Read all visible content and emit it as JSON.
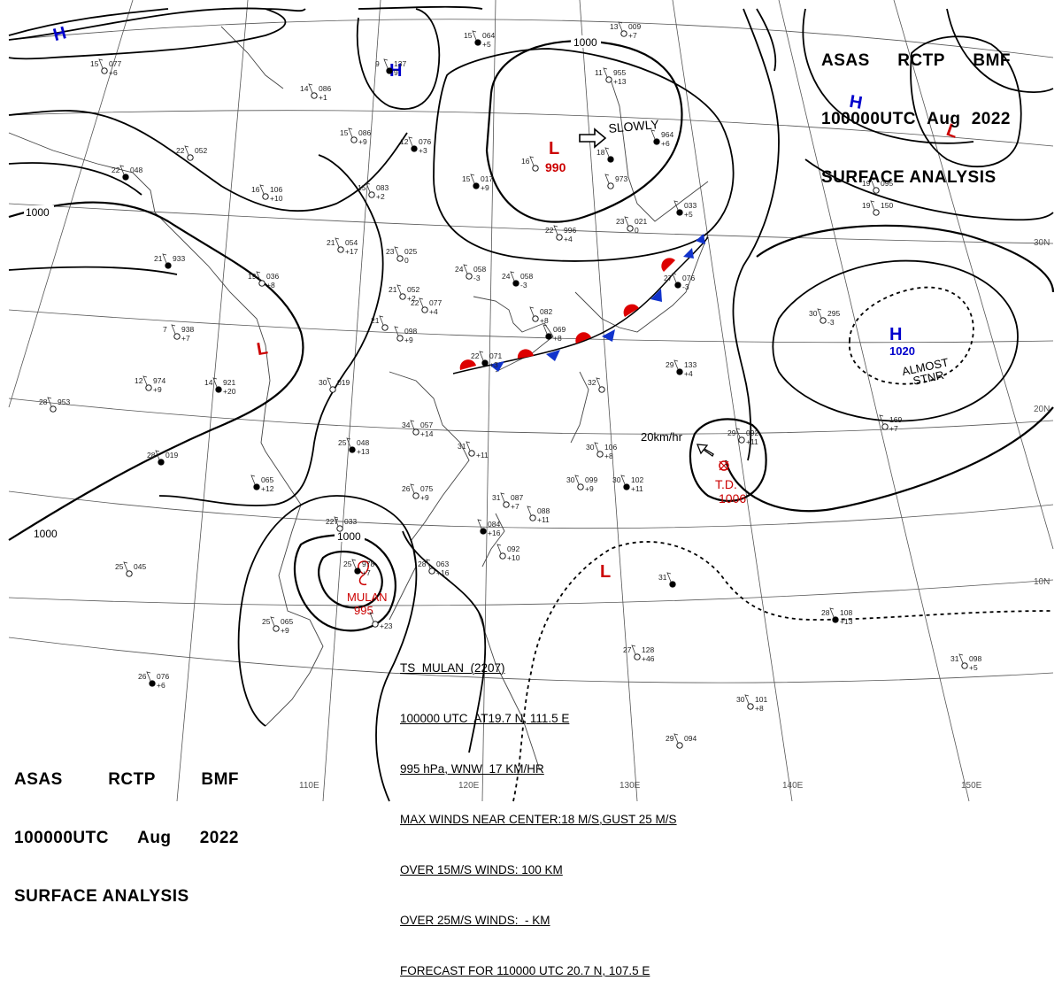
{
  "header": {
    "line1": [
      "ASAS",
      "RCTP",
      "BMF"
    ],
    "line2": [
      "100000UTC",
      "Aug",
      "2022"
    ],
    "line3": "SURFACE ANALYSIS"
  },
  "isobar_labels": [
    "1000",
    "1000",
    "1000",
    "1000"
  ],
  "pressure_systems": [
    {
      "symbol": "H",
      "color": "#0000cc"
    },
    {
      "symbol": "H",
      "color": "#0000cc"
    },
    {
      "symbol": "H",
      "color": "#0000cc"
    },
    {
      "symbol": "L",
      "color": "#cc0000",
      "value": "990",
      "motion": "SLOWLY"
    },
    {
      "symbol": "L",
      "color": "#cc0000"
    },
    {
      "symbol": "L",
      "color": "#cc0000"
    },
    {
      "symbol": "H",
      "color": "#0000cc",
      "value": "1020",
      "note": "ALMOST STNR"
    },
    {
      "symbol": "L",
      "color": "#cc0000"
    }
  ],
  "td": {
    "label": "T.D.",
    "pressure": "1006",
    "motion": "20km/hr",
    "color": "#cc0000"
  },
  "typhoon": {
    "name": "MULAN",
    "pressure": "995",
    "color": "#cc0000"
  },
  "lat_labels": [
    "30N",
    "20N",
    "10N"
  ],
  "lon_labels": [
    "110E",
    "120E",
    "130E",
    "140E",
    "150E"
  ],
  "storm_info": [
    "TS  MULAN  (2207)",
    "100000 UTC  AT19.7 N, 111.5 E",
    "995 hPa, WNW  17 KM/HR",
    "MAX WINDS NEAR CENTER:18 M/S,GUST 25 M/S",
    "OVER 15M/S WINDS: 100 KM",
    "OVER 25M/S WINDS:  - KM",
    "FORECAST FOR 110000 UTC 20.7 N, 107.5 E"
  ],
  "stations": [
    {
      "t": "15",
      "p": "064",
      "d": "+5"
    },
    {
      "t": "13",
      "p": "009",
      "d": "+7"
    },
    {
      "t": "15",
      "p": "077",
      "d": "+6"
    },
    {
      "t": "9",
      "p": "137",
      "d": "9"
    },
    {
      "t": "14",
      "p": "086",
      "d": "+1"
    },
    {
      "t": "15",
      "p": "086",
      "d": "+9"
    },
    {
      "t": "12",
      "p": "076",
      "d": "+3"
    },
    {
      "t": "11",
      "p": "955",
      "d": "+13"
    },
    {
      "t": "22",
      "p": "052",
      "d": ""
    },
    {
      "t": "22",
      "p": "048",
      "d": ""
    },
    {
      "t": "16",
      "p": "106",
      "d": "+10"
    },
    {
      "t": "15",
      "p": "083",
      "d": "+2"
    },
    {
      "t": "15",
      "p": "017",
      "d": "+9"
    },
    {
      "t": "16",
      "p": "",
      "d": ""
    },
    {
      "t": "",
      "p": "973",
      "d": ""
    },
    {
      "t": "",
      "p": "964",
      "d": "+6"
    },
    {
      "t": "19",
      "p": "095",
      "d": ""
    },
    {
      "t": "19",
      "p": "150",
      "d": ""
    },
    {
      "t": "18",
      "p": "",
      "d": ""
    },
    {
      "t": "22",
      "p": "996",
      "d": "+4"
    },
    {
      "t": "23",
      "p": "021",
      "d": "0"
    },
    {
      "t": "",
      "p": "033",
      "d": "+5"
    },
    {
      "t": "21",
      "p": "054",
      "d": "+17"
    },
    {
      "t": "23",
      "p": "025",
      "d": "0"
    },
    {
      "t": "21",
      "p": "933",
      "d": ""
    },
    {
      "t": "19",
      "p": "036",
      "d": "+8"
    },
    {
      "t": "24",
      "p": "058",
      "d": "-3"
    },
    {
      "t": "24",
      "p": "058",
      "d": "-3"
    },
    {
      "t": "21",
      "p": "052",
      "d": "+2"
    },
    {
      "t": "22",
      "p": "077",
      "d": "+4"
    },
    {
      "t": "27",
      "p": "076",
      "d": "-3"
    },
    {
      "t": "21",
      "p": "",
      "d": ""
    },
    {
      "t": "",
      "p": "082",
      "d": "+8"
    },
    {
      "t": "",
      "p": "069",
      "d": "+8"
    },
    {
      "t": "7",
      "p": "938",
      "d": "+7"
    },
    {
      "t": "",
      "p": "098",
      "d": "+9"
    },
    {
      "t": "22",
      "p": "071",
      "d": "+3"
    },
    {
      "t": "30",
      "p": "295",
      "d": "-3"
    },
    {
      "t": "12",
      "p": "974",
      "d": "+9"
    },
    {
      "t": "14",
      "p": "921",
      "d": "+20"
    },
    {
      "t": "30",
      "p": "019",
      "d": ""
    },
    {
      "t": "32",
      "p": "",
      "d": ""
    },
    {
      "t": "29",
      "p": "133",
      "d": "+4"
    },
    {
      "t": "28",
      "p": "953",
      "d": ""
    },
    {
      "t": "34",
      "p": "057",
      "d": "+14"
    },
    {
      "t": "25",
      "p": "048",
      "d": "+13"
    },
    {
      "t": "",
      "p": "169",
      "d": "+7"
    },
    {
      "t": "31",
      "p": "",
      "d": "+11"
    },
    {
      "t": "28",
      "p": "019",
      "d": ""
    },
    {
      "t": "30",
      "p": "106",
      "d": "+8"
    },
    {
      "t": "29",
      "p": "092",
      "d": "+11"
    },
    {
      "t": "",
      "p": "065",
      "d": "+12"
    },
    {
      "t": "26",
      "p": "075",
      "d": "+9"
    },
    {
      "t": "30",
      "p": "099",
      "d": "+9"
    },
    {
      "t": "30",
      "p": "102",
      "d": "+11"
    },
    {
      "t": "31",
      "p": "087",
      "d": "+7"
    },
    {
      "t": "",
      "p": "088",
      "d": "+11"
    },
    {
      "t": "",
      "p": "084",
      "d": "+16"
    },
    {
      "t": "",
      "p": "092",
      "d": "+10"
    },
    {
      "t": "227",
      "p": "033",
      "d": ""
    },
    {
      "t": "25",
      "p": "978",
      "d": "+7"
    },
    {
      "t": "25",
      "p": "045",
      "d": ""
    },
    {
      "t": "28",
      "p": "063",
      "d": "+16"
    },
    {
      "t": "31",
      "p": "",
      "d": ""
    },
    {
      "t": "25",
      "p": "065",
      "d": "+9"
    },
    {
      "t": "",
      "p": "",
      "d": "+23"
    },
    {
      "t": "28",
      "p": "108",
      "d": "+13"
    },
    {
      "t": "27",
      "p": "128",
      "d": "+46"
    },
    {
      "t": "31",
      "p": "098",
      "d": "+5"
    },
    {
      "t": "26",
      "p": "076",
      "d": "+6"
    },
    {
      "t": "30",
      "p": "101",
      "d": "+8"
    },
    {
      "t": "29",
      "p": "094",
      "d": ""
    }
  ]
}
